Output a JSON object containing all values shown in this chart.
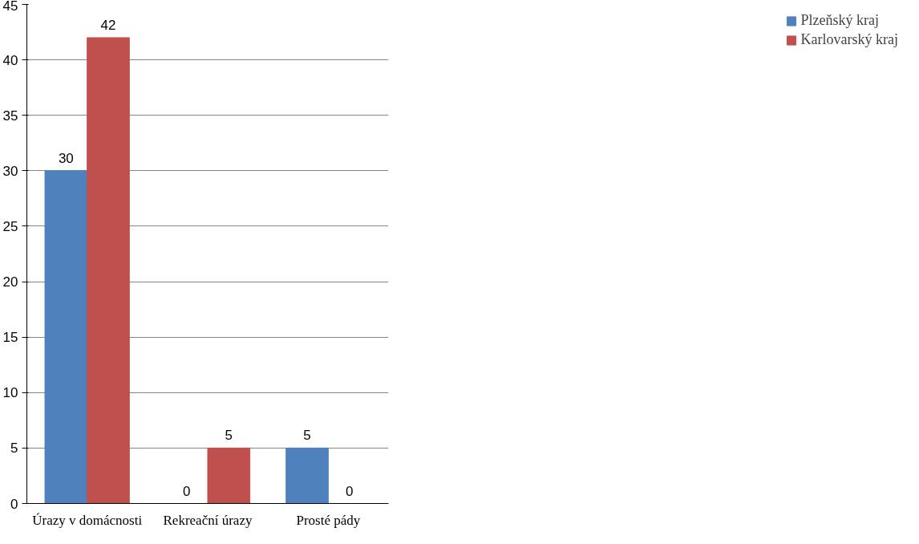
{
  "chart_data": {
    "type": "bar",
    "categories": [
      "Úrazy v domácnosti",
      "Rekreační úrazy",
      "Prosté pády"
    ],
    "series": [
      {
        "name": "Plzeňský kraj",
        "color": "#4f81bd",
        "values": [
          30,
          0,
          5
        ]
      },
      {
        "name": "Karlovarský kraj",
        "color": "#c0504d",
        "values": [
          42,
          5,
          0
        ]
      }
    ],
    "ylim": [
      0,
      45
    ],
    "yticks": [
      0,
      5,
      10,
      15,
      20,
      25,
      30,
      35,
      40,
      45
    ],
    "grid": "y",
    "legend": "right",
    "data_labels": true
  }
}
